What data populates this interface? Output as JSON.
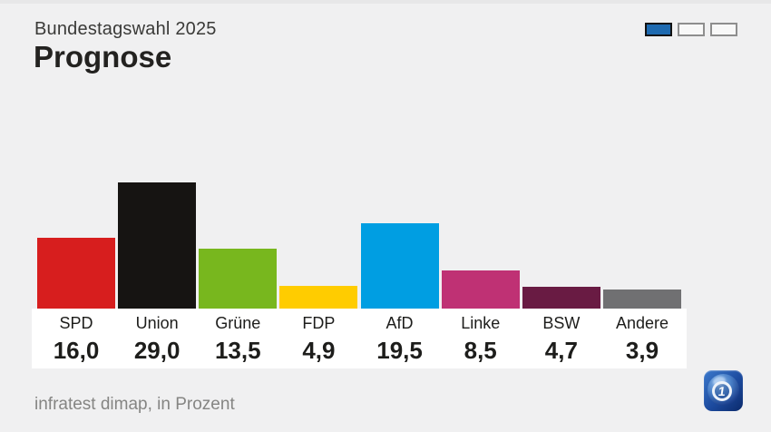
{
  "header": {
    "kicker": "Bundestagswahl 2025",
    "title": "Prognose"
  },
  "pager": {
    "pages": [
      {
        "active": true
      },
      {
        "active": false
      },
      {
        "active": false
      }
    ]
  },
  "chart_data": {
    "type": "bar",
    "title": "Prognose",
    "subtitle": "Bundestagswahl 2025",
    "categories": [
      "SPD",
      "Union",
      "Grüne",
      "FDP",
      "AfD",
      "Linke",
      "BSW",
      "Andere"
    ],
    "values": [
      16.0,
      29.0,
      13.5,
      4.9,
      19.5,
      8.5,
      4.7,
      3.9
    ],
    "value_labels": [
      "16,0",
      "29,0",
      "13,5",
      "4,9",
      "19,5",
      "8,5",
      "4,7",
      "3,9"
    ],
    "bar_colors": [
      "#d71e1e",
      "#161412",
      "#78b71e",
      "#ffcc00",
      "#009ee2",
      "#bf3174",
      "#691b43",
      "#707072"
    ],
    "unit": "Prozent",
    "grid": false,
    "legend": false
  },
  "footer": {
    "source": "infratest dimap, in Prozent"
  },
  "logo": {
    "name": "ard-eins-globe-logo",
    "glyph": "1"
  },
  "colors": {
    "background": "#f0f0f1",
    "panel": "#ffffff",
    "pager_active": "#1e6ab0",
    "text_primary": "#1d1d1b",
    "text_muted": "#858583"
  }
}
